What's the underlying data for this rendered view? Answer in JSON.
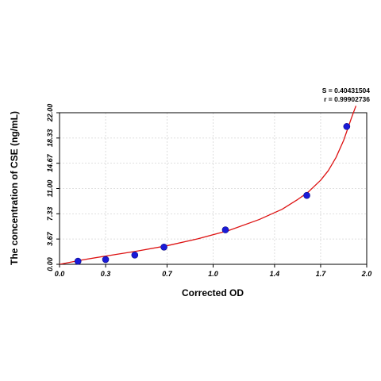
{
  "chart_data": {
    "type": "scatter",
    "title": "",
    "xlabel": "Corrected OD",
    "ylabel": "The concentration of CSE (ng/mL)",
    "xlim": [
      0.0,
      2.0
    ],
    "ylim": [
      0.0,
      22.0
    ],
    "x_ticks": [
      "0.0",
      "0.3",
      "0.7",
      "1.0",
      "1.4",
      "1.7",
      "2.0"
    ],
    "y_ticks": [
      "0.00",
      "3.67",
      "7.33",
      "11.00",
      "14.67",
      "18.33",
      "22.00"
    ],
    "grid": true,
    "points": [
      {
        "x": 0.12,
        "y": 0.45
      },
      {
        "x": 0.3,
        "y": 0.7
      },
      {
        "x": 0.49,
        "y": 1.35
      },
      {
        "x": 0.68,
        "y": 2.5
      },
      {
        "x": 1.08,
        "y": 5.0
      },
      {
        "x": 1.61,
        "y": 10.0
      },
      {
        "x": 1.87,
        "y": 20.0
      }
    ],
    "fit_curve": {
      "color": "#dd1111",
      "x": [
        0.0,
        0.15,
        0.3,
        0.5,
        0.7,
        0.9,
        1.1,
        1.3,
        1.45,
        1.55,
        1.62,
        1.7,
        1.75,
        1.8,
        1.85,
        1.9,
        1.93
      ],
      "y": [
        0.0,
        0.65,
        1.2,
        1.9,
        2.7,
        3.7,
        4.9,
        6.5,
        8.0,
        9.4,
        10.5,
        12.2,
        13.6,
        15.5,
        18.0,
        21.2,
        23.0
      ]
    },
    "point_color": "#1a1ad8",
    "stats": [
      "S = 0.40431504",
      "r = 0.99902736"
    ]
  }
}
